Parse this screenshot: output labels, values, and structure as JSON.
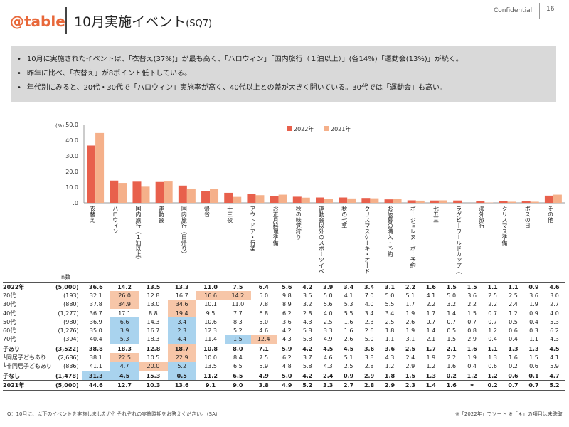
{
  "header": {
    "logo": "@table",
    "title": "10月実施イベント",
    "title_suffix": "(SQ7)",
    "confidential": "Confidential",
    "page": "16"
  },
  "summary": [
    "10月に実施されたイベントは、「衣替え(37%)」が最も高く、「ハロウィン」「国内旅行（１泊以上）」(各14%)「運動会(13%)」が続く。",
    "昨年に比べ、「衣替え」が8ポイント低下している。",
    "年代別にみると、20代・30代で「ハロウィン」実施率が高く、40代以上との差が大きく開いている。30代では「運動会」も高い。"
  ],
  "chart_data": {
    "type": "bar",
    "ylabel": "(%)",
    "ylim": [
      0,
      50
    ],
    "yticks": [
      "50.0",
      "40.0",
      "30.0",
      "20.0",
      "10.0",
      ".0"
    ],
    "legend_position": "top",
    "categories": [
      "衣替え",
      "ハロウィン",
      "国内旅行（１泊以上）",
      "運動会",
      "国内旅行（日帰り）",
      "帰省",
      "十三夜",
      "アウトドア・行楽",
      "お正月料理準備",
      "秋の味覚狩り",
      "運動会以外のスポーツイベント",
      "秋の七草",
      "クリスマスケーキ・オードブル予約",
      "お歳暮の購入・予約",
      "ボージョレヌーボー予約",
      "七五三",
      "ラグビーワールドカップ（天皇杯）の試合観戦",
      "海外旅行",
      "クリスマス準備",
      "ボスの日",
      "その他"
    ],
    "series": [
      {
        "name": "2022年",
        "color": "#e8604c",
        "values": [
          36.6,
          14.2,
          13.5,
          13.3,
          11.0,
          7.5,
          6.4,
          5.6,
          4.2,
          3.9,
          3.4,
          3.4,
          3.1,
          2.2,
          1.6,
          1.5,
          1.5,
          1.1,
          1.1,
          0.9,
          4.6
        ]
      },
      {
        "name": "2021年",
        "color": "#f5b08a",
        "values": [
          44.6,
          12.7,
          10.3,
          13.6,
          9.1,
          9.0,
          3.8,
          4.9,
          5.2,
          3.3,
          2.7,
          2.8,
          2.9,
          2.3,
          1.4,
          1.6,
          null,
          0.2,
          0.7,
          0.7,
          5.2
        ]
      }
    ]
  },
  "table": {
    "n_header": "n数",
    "rows": [
      {
        "label": "2022年",
        "n": "(5,000)",
        "vals": [
          "36.6",
          "14.2",
          "13.5",
          "13.3",
          "11.0",
          "7.5",
          "6.4",
          "5.6",
          "4.2",
          "3.9",
          "3.4",
          "3.4",
          "3.1",
          "2.2",
          "1.6",
          "1.5",
          "1.5",
          "1.1",
          "1.1",
          "0.9",
          "4.6"
        ],
        "style": "bold top"
      },
      {
        "label": "20代",
        "n": "(193)",
        "vals": [
          "32.1",
          "26.0",
          "12.8",
          "16.7",
          "16.6",
          "14.2",
          "5.0",
          "9.8",
          "3.5",
          "5.0",
          "4.1",
          "7.0",
          "5.0",
          "5.1",
          "4.1",
          "5.0",
          "3.6",
          "2.5",
          "2.5",
          "3.6",
          "3.0"
        ],
        "hl": {
          "1": "hi",
          "4": "hi",
          "5": "hi"
        }
      },
      {
        "label": "30代",
        "n": "(880)",
        "vals": [
          "37.8",
          "34.9",
          "13.0",
          "34.6",
          "10.1",
          "11.0",
          "7.8",
          "8.9",
          "3.2",
          "5.6",
          "5.3",
          "4.0",
          "5.5",
          "1.7",
          "2.2",
          "3.2",
          "2.2",
          "2.2",
          "2.4",
          "1.9",
          "2.7"
        ],
        "hl": {
          "1": "hi",
          "3": "hi"
        }
      },
      {
        "label": "40代",
        "n": "(1,277)",
        "vals": [
          "36.7",
          "17.1",
          "8.8",
          "19.4",
          "9.5",
          "7.7",
          "6.8",
          "6.2",
          "2.8",
          "4.0",
          "5.5",
          "3.4",
          "3.4",
          "1.9",
          "1.7",
          "1.4",
          "1.5",
          "0.7",
          "1.2",
          "0.9",
          "4.0"
        ],
        "hl": {
          "3": "hi"
        }
      },
      {
        "label": "50代",
        "n": "(980)",
        "vals": [
          "36.9",
          "6.6",
          "14.3",
          "3.4",
          "10.6",
          "8.3",
          "5.0",
          "3.6",
          "4.3",
          "2.5",
          "1.6",
          "2.3",
          "2.5",
          "2.6",
          "0.7",
          "0.7",
          "0.7",
          "0.7",
          "0.5",
          "0.4",
          "5.3"
        ],
        "hl": {
          "1": "lo",
          "3": "lo"
        }
      },
      {
        "label": "60代",
        "n": "(1,276)",
        "vals": [
          "35.0",
          "3.9",
          "16.7",
          "2.3",
          "12.3",
          "5.2",
          "4.6",
          "4.2",
          "5.8",
          "3.3",
          "1.6",
          "2.6",
          "1.8",
          "1.9",
          "1.4",
          "0.5",
          "0.8",
          "1.2",
          "0.6",
          "0.3",
          "6.2"
        ],
        "hl": {
          "1": "lo",
          "3": "lo"
        }
      },
      {
        "label": "70代",
        "n": "(394)",
        "vals": [
          "40.4",
          "5.3",
          "18.3",
          "4.4",
          "11.4",
          "1.5",
          "12.4",
          "4.3",
          "5.8",
          "4.9",
          "2.6",
          "5.0",
          "1.1",
          "3.1",
          "2.1",
          "1.5",
          "2.9",
          "0.4",
          "0.4",
          "1.1",
          "4.3"
        ],
        "hl": {
          "1": "lo",
          "3": "lo",
          "5": "lo",
          "6": "hi"
        },
        "style": "bot"
      },
      {
        "label": "子あり",
        "n": "(3,522)",
        "vals": [
          "38.8",
          "18.3",
          "12.8",
          "18.7",
          "10.8",
          "8.0",
          "7.1",
          "5.9",
          "4.2",
          "4.5",
          "4.5",
          "3.6",
          "3.6",
          "2.5",
          "1.7",
          "2.1",
          "1.6",
          "1.1",
          "1.3",
          "1.3",
          "4.5"
        ],
        "hl": {
          "3": "hi"
        },
        "style": "bold"
      },
      {
        "label": "└同居子どもあり",
        "n": "(2,686)",
        "vals": [
          "38.1",
          "22.5",
          "10.5",
          "22.9",
          "10.0",
          "8.4",
          "7.5",
          "6.2",
          "3.7",
          "4.6",
          "5.1",
          "3.8",
          "4.3",
          "2.4",
          "1.9",
          "2.2",
          "1.9",
          "1.3",
          "1.6",
          "1.5",
          "4.1"
        ],
        "hl": {
          "1": "hi",
          "3": "hi"
        }
      },
      {
        "label": "└非同居子どもあり",
        "n": "(836)",
        "vals": [
          "41.1",
          "4.7",
          "20.0",
          "5.2",
          "13.5",
          "6.5",
          "5.9",
          "4.8",
          "5.8",
          "4.3",
          "2.5",
          "2.8",
          "1.2",
          "2.9",
          "1.2",
          "1.6",
          "0.4",
          "0.6",
          "0.2",
          "0.6",
          "5.9"
        ],
        "hl": {
          "1": "lo",
          "2": "hi",
          "3": "lo"
        },
        "style": "bot"
      },
      {
        "label": "子なし",
        "n": "(1,478)",
        "vals": [
          "31.3",
          "4.5",
          "15.3",
          "0.5",
          "11.2",
          "6.5",
          "4.9",
          "5.0",
          "4.2",
          "2.4",
          "0.9",
          "2.9",
          "1.8",
          "1.5",
          "1.3",
          "0.2",
          "1.2",
          "1.2",
          "0.6",
          "0.1",
          "4.7"
        ],
        "hl": {
          "0": "lo",
          "1": "lo",
          "3": "lo"
        },
        "style": "bold bot"
      },
      {
        "label": "2021年",
        "n": "(5,000)",
        "vals": [
          "44.6",
          "12.7",
          "10.3",
          "13.6",
          "9.1",
          "9.0",
          "3.8",
          "4.9",
          "5.2",
          "3.3",
          "2.7",
          "2.8",
          "2.9",
          "2.3",
          "1.4",
          "1.6",
          "＊",
          "0.2",
          "0.7",
          "0.7",
          "5.2"
        ],
        "style": "bold bot"
      }
    ]
  },
  "footnote_left": "Q：10月に、以下のイベントを実施しましたか？それぞれの実施時期をお答えください。（SA）",
  "footnote_right": "※「2022年」でソート ※「＊」の項目は未聴取"
}
